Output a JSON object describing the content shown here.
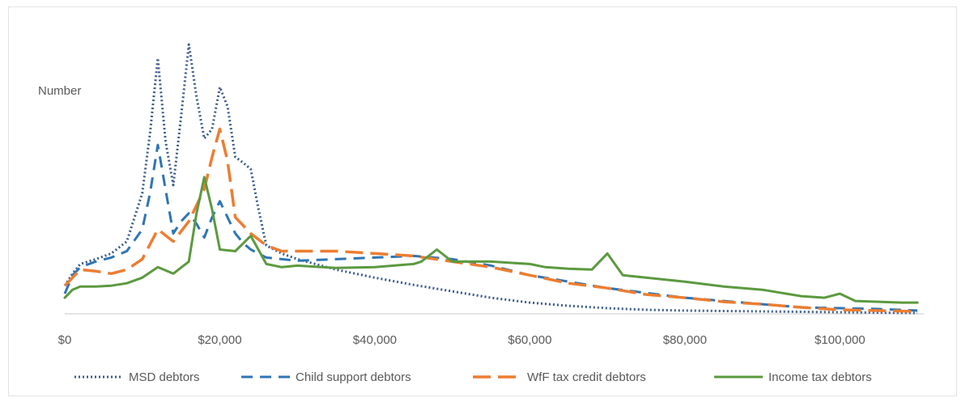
{
  "chart_data": {
    "type": "line",
    "title": "",
    "ylabel": "Number",
    "xlabel": "",
    "xlim": [
      0,
      110000
    ],
    "x_ticks": [
      {
        "value": 0,
        "label": "$0"
      },
      {
        "value": 20000,
        "label": "$20,000"
      },
      {
        "value": 40000,
        "label": "$40,000"
      },
      {
        "value": 60000,
        "label": "$60,000"
      },
      {
        "value": 80000,
        "label": "$80,000"
      },
      {
        "value": 100000,
        "label": "$100,000"
      }
    ],
    "ylim": [
      0,
      340
    ],
    "grid": false,
    "legend_position": "bottom",
    "series": [
      {
        "name": "MSD debtors",
        "color": "#3a5a8c",
        "dash": "dotted",
        "points": [
          [
            0,
            35
          ],
          [
            1000,
            50
          ],
          [
            2000,
            62
          ],
          [
            4000,
            68
          ],
          [
            6000,
            75
          ],
          [
            8000,
            90
          ],
          [
            10000,
            150
          ],
          [
            11000,
            225
          ],
          [
            12000,
            318
          ],
          [
            13000,
            215
          ],
          [
            14000,
            160
          ],
          [
            15000,
            245
          ],
          [
            16000,
            335
          ],
          [
            17000,
            270
          ],
          [
            18000,
            218
          ],
          [
            19000,
            230
          ],
          [
            20000,
            282
          ],
          [
            21000,
            258
          ],
          [
            22000,
            195
          ],
          [
            23000,
            188
          ],
          [
            24000,
            180
          ],
          [
            25000,
            130
          ],
          [
            26000,
            85
          ],
          [
            28000,
            75
          ],
          [
            30000,
            68
          ],
          [
            35000,
            55
          ],
          [
            40000,
            45
          ],
          [
            45000,
            36
          ],
          [
            50000,
            28
          ],
          [
            55000,
            20
          ],
          [
            60000,
            14
          ],
          [
            65000,
            10
          ],
          [
            70000,
            7
          ],
          [
            75000,
            5
          ],
          [
            80000,
            4
          ],
          [
            90000,
            3
          ],
          [
            100000,
            2
          ],
          [
            110000,
            1
          ]
        ]
      },
      {
        "name": "Child support debtors",
        "color": "#2e75b6",
        "dash": "dashed",
        "points": [
          [
            0,
            25
          ],
          [
            1000,
            48
          ],
          [
            2000,
            58
          ],
          [
            4000,
            65
          ],
          [
            6000,
            70
          ],
          [
            8000,
            78
          ],
          [
            10000,
            105
          ],
          [
            11000,
            150
          ],
          [
            12000,
            210
          ],
          [
            13000,
            155
          ],
          [
            14000,
            100
          ],
          [
            15000,
            115
          ],
          [
            16000,
            125
          ],
          [
            17000,
            112
          ],
          [
            18000,
            95
          ],
          [
            19000,
            120
          ],
          [
            20000,
            140
          ],
          [
            21000,
            120
          ],
          [
            22000,
            100
          ],
          [
            23000,
            88
          ],
          [
            24000,
            80
          ],
          [
            25000,
            75
          ],
          [
            26000,
            70
          ],
          [
            28000,
            68
          ],
          [
            30000,
            66
          ],
          [
            35000,
            68
          ],
          [
            40000,
            70
          ],
          [
            45000,
            72
          ],
          [
            50000,
            68
          ],
          [
            55000,
            60
          ],
          [
            60000,
            48
          ],
          [
            65000,
            40
          ],
          [
            70000,
            32
          ],
          [
            75000,
            26
          ],
          [
            80000,
            20
          ],
          [
            85000,
            16
          ],
          [
            90000,
            12
          ],
          [
            95000,
            8
          ],
          [
            100000,
            7
          ],
          [
            105000,
            6
          ],
          [
            110000,
            4
          ]
        ]
      },
      {
        "name": "WfF tax credit debtors",
        "color": "#ed7d31",
        "dash": "longdash",
        "points": [
          [
            0,
            35
          ],
          [
            1000,
            45
          ],
          [
            2000,
            55
          ],
          [
            4000,
            53
          ],
          [
            6000,
            50
          ],
          [
            8000,
            55
          ],
          [
            10000,
            68
          ],
          [
            12000,
            105
          ],
          [
            14000,
            90
          ],
          [
            16000,
            115
          ],
          [
            18000,
            155
          ],
          [
            19000,
            195
          ],
          [
            20000,
            230
          ],
          [
            21000,
            190
          ],
          [
            22000,
            120
          ],
          [
            23000,
            110
          ],
          [
            24000,
            100
          ],
          [
            26000,
            85
          ],
          [
            28000,
            78
          ],
          [
            30000,
            78
          ],
          [
            35000,
            78
          ],
          [
            40000,
            75
          ],
          [
            45000,
            72
          ],
          [
            50000,
            65
          ],
          [
            55000,
            58
          ],
          [
            60000,
            48
          ],
          [
            65000,
            38
          ],
          [
            70000,
            32
          ],
          [
            75000,
            24
          ],
          [
            80000,
            20
          ],
          [
            85000,
            15
          ],
          [
            90000,
            12
          ],
          [
            95000,
            8
          ],
          [
            100000,
            5
          ],
          [
            105000,
            4
          ],
          [
            110000,
            3
          ]
        ]
      },
      {
        "name": "Income tax debtors",
        "color": "#5b9a3f",
        "dash": "solid",
        "points": [
          [
            0,
            20
          ],
          [
            1000,
            30
          ],
          [
            2000,
            34
          ],
          [
            4000,
            34
          ],
          [
            6000,
            35
          ],
          [
            8000,
            38
          ],
          [
            10000,
            45
          ],
          [
            12000,
            58
          ],
          [
            14000,
            50
          ],
          [
            16000,
            65
          ],
          [
            17000,
            125
          ],
          [
            18000,
            170
          ],
          [
            19000,
            130
          ],
          [
            20000,
            80
          ],
          [
            22000,
            78
          ],
          [
            24000,
            97
          ],
          [
            26000,
            62
          ],
          [
            28000,
            58
          ],
          [
            30000,
            60
          ],
          [
            35000,
            57
          ],
          [
            40000,
            58
          ],
          [
            45000,
            62
          ],
          [
            46000,
            65
          ],
          [
            48000,
            80
          ],
          [
            50000,
            65
          ],
          [
            55000,
            65
          ],
          [
            60000,
            62
          ],
          [
            62000,
            58
          ],
          [
            65000,
            56
          ],
          [
            68000,
            55
          ],
          [
            70000,
            75
          ],
          [
            72000,
            48
          ],
          [
            75000,
            45
          ],
          [
            80000,
            40
          ],
          [
            85000,
            34
          ],
          [
            90000,
            30
          ],
          [
            95000,
            22
          ],
          [
            98000,
            20
          ],
          [
            100000,
            25
          ],
          [
            102000,
            16
          ],
          [
            105000,
            15
          ],
          [
            108000,
            14
          ],
          [
            110000,
            14
          ]
        ]
      }
    ]
  }
}
